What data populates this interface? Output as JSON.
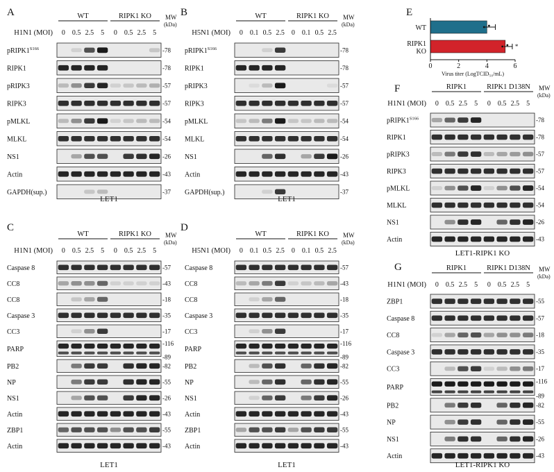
{
  "panels": [
    {
      "id": "A",
      "condition": "H1N1 (MOI)",
      "lanes": [
        "0",
        "0.5",
        "2.5",
        "5",
        "0",
        "0.5",
        "2.5",
        "5"
      ],
      "groups": [
        "WT",
        "RIPK1 KO"
      ],
      "mw_header": [
        "MW",
        "(kDa)"
      ],
      "caption": "LET1",
      "rows": [
        {
          "label": "pRIPK1",
          "sup": "S166",
          "mw": [
            "78"
          ],
          "i": [
            0,
            0.1,
            0.7,
            0.95,
            0,
            0,
            0,
            0.15
          ]
        },
        {
          "label": "RIPK1",
          "mw": [
            "78"
          ],
          "i": [
            0.9,
            0.9,
            0.9,
            0.9,
            0,
            0,
            0,
            0
          ]
        },
        {
          "label": "pRIPK3",
          "mw": [
            "57"
          ],
          "i": [
            0.2,
            0.4,
            0.8,
            0.9,
            0.1,
            0.15,
            0.2,
            0.25
          ]
        },
        {
          "label": "RIPK3",
          "mw": [
            "57"
          ],
          "i": [
            0.85,
            0.85,
            0.85,
            0.85,
            0.85,
            0.85,
            0.85,
            0.85
          ]
        },
        {
          "label": "pMLKL",
          "mw": [
            "54"
          ],
          "i": [
            0.2,
            0.4,
            0.8,
            0.95,
            0.1,
            0.15,
            0.2,
            0.2
          ]
        },
        {
          "label": "MLKL",
          "mw": [
            "54"
          ],
          "i": [
            0.85,
            0.85,
            0.85,
            0.85,
            0.85,
            0.85,
            0.85,
            0.85
          ]
        },
        {
          "label": "NS1",
          "mw": [
            "26"
          ],
          "i": [
            0,
            0.3,
            0.7,
            0.7,
            0,
            0.8,
            0.85,
            0.9
          ]
        },
        {
          "label": "Actin",
          "mw": [
            "43"
          ],
          "i": [
            0.9,
            0.9,
            0.9,
            0.9,
            0.9,
            0.9,
            0.9,
            0.9
          ]
        },
        {
          "label": "GAPDH(sup.)",
          "mw": [
            "37"
          ],
          "i": [
            0,
            0,
            0.15,
            0.2,
            0,
            0,
            0,
            0
          ]
        }
      ]
    },
    {
      "id": "B",
      "condition": "H5N1 (MOI)",
      "lanes": [
        "0",
        "0.1",
        "0.5",
        "2.5",
        "0",
        "0.1",
        "0.5",
        "2.5"
      ],
      "groups": [
        "WT",
        "RIPK1 KO"
      ],
      "mw_header": [
        "MW",
        "(kDa)"
      ],
      "caption": "LET1",
      "rows": [
        {
          "label": "pRIPK1",
          "sup": "S166",
          "mw": [
            "78"
          ],
          "i": [
            0,
            0,
            0.1,
            0.8,
            0,
            0,
            0,
            0
          ]
        },
        {
          "label": "RIPK1",
          "mw": [
            "78"
          ],
          "i": [
            0.9,
            0.9,
            0.9,
            0.9,
            0,
            0,
            0,
            0
          ]
        },
        {
          "label": "pRIPK3",
          "mw": [
            "57"
          ],
          "i": [
            0,
            0.05,
            0.2,
            0.95,
            0,
            0,
            0,
            0.05
          ]
        },
        {
          "label": "RIPK3",
          "mw": [
            "57"
          ],
          "i": [
            0.85,
            0.85,
            0.85,
            0.85,
            0.85,
            0.85,
            0.85,
            0.85
          ]
        },
        {
          "label": "pMLKL",
          "mw": [
            "54"
          ],
          "i": [
            0.15,
            0.2,
            0.5,
            0.95,
            0.15,
            0.15,
            0.2,
            0.2
          ]
        },
        {
          "label": "MLKL",
          "mw": [
            "54"
          ],
          "i": [
            0.85,
            0.85,
            0.85,
            0.85,
            0.85,
            0.85,
            0.85,
            0.85
          ]
        },
        {
          "label": "NS1",
          "mw": [
            "26"
          ],
          "i": [
            0,
            0,
            0.6,
            0.85,
            0,
            0.3,
            0.8,
            0.95
          ]
        },
        {
          "label": "Actin",
          "mw": [
            "43"
          ],
          "i": [
            0.9,
            0.9,
            0.9,
            0.9,
            0.9,
            0.9,
            0.9,
            0.9
          ]
        },
        {
          "label": "GAPDH(sup.)",
          "mw": [
            "37"
          ],
          "i": [
            0,
            0,
            0.1,
            0.8,
            0,
            0,
            0,
            0
          ]
        }
      ]
    },
    {
      "id": "C",
      "condition": "H1N1 (MOI)",
      "lanes": [
        "0",
        "0.5",
        "2.5",
        "5",
        "0",
        "0.5",
        "2.5",
        "5"
      ],
      "groups": [
        "WT",
        "RIPK1 KO"
      ],
      "mw_header": [
        "MW",
        "(kDa)"
      ],
      "caption": "LET1",
      "rows": [
        {
          "label": "Caspase 8",
          "mw": [
            "57"
          ],
          "i": [
            0.85,
            0.85,
            0.85,
            0.85,
            0.85,
            0.85,
            0.85,
            0.85
          ]
        },
        {
          "label": "CC8",
          "mw": [
            "43"
          ],
          "i": [
            0.3,
            0.4,
            0.4,
            0.6,
            0.1,
            0.1,
            0.1,
            0.1
          ]
        },
        {
          "label": "CC8",
          "mw": [
            "18"
          ],
          "i": [
            0,
            0.15,
            0.3,
            0.6,
            0,
            0,
            0,
            0
          ]
        },
        {
          "label": "Caspase 3",
          "mw": [
            "35"
          ],
          "i": [
            0.85,
            0.85,
            0.85,
            0.85,
            0.85,
            0.85,
            0.85,
            0.85
          ]
        },
        {
          "label": "CC3",
          "mw": [
            "17"
          ],
          "i": [
            0,
            0.1,
            0.4,
            0.8,
            0,
            0,
            0,
            0
          ]
        },
        {
          "label": "PARP",
          "mw": [
            "116",
            "89"
          ],
          "tall": true,
          "i": [
            0.9,
            0.9,
            0.9,
            0.9,
            0.9,
            0.9,
            0.9,
            0.9
          ]
        },
        {
          "label": "PB2",
          "mw": [
            "82"
          ],
          "i": [
            0,
            0.5,
            0.8,
            0.8,
            0,
            0.85,
            0.9,
            0.9
          ]
        },
        {
          "label": "NP",
          "mw": [
            "55"
          ],
          "i": [
            0,
            0.5,
            0.8,
            0.8,
            0,
            0.85,
            0.9,
            0.9
          ]
        },
        {
          "label": "NS1",
          "mw": [
            "26"
          ],
          "i": [
            0,
            0.3,
            0.7,
            0.7,
            0,
            0.8,
            0.9,
            0.9
          ]
        },
        {
          "label": "Actin",
          "mw": [
            "43"
          ],
          "i": [
            0.9,
            0.9,
            0.9,
            0.9,
            0.9,
            0.9,
            0.9,
            0.9
          ]
        },
        {
          "label": "ZBP1",
          "mw": [
            "55"
          ],
          "i": [
            0.6,
            0.7,
            0.7,
            0.7,
            0.4,
            0.7,
            0.7,
            0.8
          ]
        },
        {
          "label": "Actin",
          "mw": [
            "43"
          ],
          "i": [
            0.9,
            0.9,
            0.9,
            0.9,
            0.9,
            0.9,
            0.9,
            0.9
          ]
        }
      ]
    },
    {
      "id": "D",
      "condition": "H5N1 (MOI)",
      "lanes": [
        "0",
        "0.1",
        "0.5",
        "2.5",
        "0",
        "0.1",
        "0.5",
        "2.5"
      ],
      "groups": [
        "WT",
        "RIPK1 KO"
      ],
      "mw_header": [
        "MW",
        "(kDa)"
      ],
      "caption": "LET1",
      "rows": [
        {
          "label": "Caspase 8",
          "mw": [
            "57"
          ],
          "i": [
            0.85,
            0.85,
            0.85,
            0.85,
            0.85,
            0.85,
            0.85,
            0.85
          ]
        },
        {
          "label": "CC8",
          "mw": [
            "43"
          ],
          "i": [
            0.2,
            0.3,
            0.5,
            0.8,
            0.1,
            0.15,
            0.2,
            0.3
          ]
        },
        {
          "label": "CC8",
          "mw": [
            "18"
          ],
          "i": [
            0,
            0.1,
            0.3,
            0.6,
            0,
            0,
            0,
            0
          ]
        },
        {
          "label": "Caspase 3",
          "mw": [
            "35"
          ],
          "i": [
            0.85,
            0.85,
            0.85,
            0.85,
            0.85,
            0.85,
            0.85,
            0.85
          ]
        },
        {
          "label": "CC3",
          "mw": [
            "17"
          ],
          "i": [
            0,
            0.1,
            0.4,
            0.8,
            0,
            0,
            0,
            0
          ]
        },
        {
          "label": "PARP",
          "mw": [
            "116",
            "89"
          ],
          "tall": true,
          "i": [
            0.9,
            0.9,
            0.9,
            0.9,
            0.9,
            0.9,
            0.9,
            0.9
          ]
        },
        {
          "label": "PB2",
          "mw": [
            "82"
          ],
          "i": [
            0,
            0.2,
            0.7,
            0.85,
            0,
            0.6,
            0.85,
            0.9
          ]
        },
        {
          "label": "NP",
          "mw": [
            "55"
          ],
          "i": [
            0,
            0.2,
            0.6,
            0.85,
            0,
            0.6,
            0.85,
            0.9
          ]
        },
        {
          "label": "NS1",
          "mw": [
            "26"
          ],
          "i": [
            0,
            0.1,
            0.6,
            0.8,
            0,
            0.5,
            0.8,
            0.9
          ]
        },
        {
          "label": "Actin",
          "mw": [
            "43"
          ],
          "i": [
            0.9,
            0.9,
            0.9,
            0.9,
            0.9,
            0.9,
            0.9,
            0.9
          ]
        },
        {
          "label": "ZBP1",
          "mw": [
            "55"
          ],
          "i": [
            0.3,
            0.7,
            0.7,
            0.8,
            0.3,
            0.7,
            0.8,
            0.8
          ]
        },
        {
          "label": "Actin",
          "mw": [
            "43"
          ],
          "i": [
            0.9,
            0.9,
            0.9,
            0.9,
            0.9,
            0.9,
            0.9,
            0.9
          ]
        }
      ]
    },
    {
      "id": "F",
      "condition": "H1N1 (MOI)",
      "lanes": [
        "0",
        "0.5",
        "2.5",
        "5",
        "0",
        "0.5",
        "2.5",
        "5"
      ],
      "groups": [
        "RIPK1",
        "RIPK1 D138N"
      ],
      "mw_header": [
        "MW",
        "(kDa)"
      ],
      "caption": "LET1-RIPK1 KO",
      "rows": [
        {
          "label": "pRIPK1",
          "sup": "S166",
          "mw": [
            "78"
          ],
          "i": [
            0.3,
            0.6,
            0.8,
            0.9,
            0,
            0,
            0,
            0
          ]
        },
        {
          "label": "RIPK1",
          "mw": [
            "78"
          ],
          "i": [
            0.85,
            0.85,
            0.85,
            0.85,
            0.85,
            0.85,
            0.85,
            0.85
          ]
        },
        {
          "label": "pRIPK3",
          "mw": [
            "57"
          ],
          "i": [
            0.2,
            0.5,
            0.8,
            0.85,
            0.2,
            0.3,
            0.35,
            0.4
          ]
        },
        {
          "label": "RIPK3",
          "mw": [
            "57"
          ],
          "i": [
            0.85,
            0.85,
            0.85,
            0.85,
            0.85,
            0.85,
            0.85,
            0.85
          ]
        },
        {
          "label": "pMLKL",
          "mw": [
            "54"
          ],
          "i": [
            0.1,
            0.4,
            0.7,
            0.9,
            0.1,
            0.4,
            0.7,
            0.9
          ]
        },
        {
          "label": "MLKL",
          "mw": [
            "54"
          ],
          "i": [
            0.85,
            0.85,
            0.85,
            0.85,
            0.85,
            0.85,
            0.85,
            0.85
          ]
        },
        {
          "label": "NS1",
          "mw": [
            "26"
          ],
          "i": [
            0,
            0.4,
            0.85,
            0.9,
            0,
            0.6,
            0.85,
            0.9
          ]
        },
        {
          "label": "Actin",
          "mw": [
            "43"
          ],
          "i": [
            0.9,
            0.9,
            0.9,
            0.9,
            0.9,
            0.9,
            0.9,
            0.9
          ]
        }
      ]
    },
    {
      "id": "G",
      "condition": "H1N1 (MOI)",
      "lanes": [
        "0",
        "0.5",
        "2.5",
        "5",
        "0",
        "0.5",
        "2.5",
        "5"
      ],
      "groups": [
        "RIPK1",
        "RIPK1 D138N"
      ],
      "mw_header": [
        "MW",
        "(kDa)"
      ],
      "caption": "LET1-RIPK1 KO",
      "rows": [
        {
          "label": "ZBP1",
          "mw": [
            "55"
          ],
          "i": [
            0.85,
            0.85,
            0.85,
            0.85,
            0.85,
            0.85,
            0.85,
            0.85
          ]
        },
        {
          "label": "Caspase 8",
          "mw": [
            "57"
          ],
          "i": [
            0.85,
            0.85,
            0.85,
            0.85,
            0.85,
            0.85,
            0.85,
            0.85
          ]
        },
        {
          "label": "CC8",
          "mw": [
            "18"
          ],
          "i": [
            0.1,
            0.3,
            0.6,
            0.7,
            0.3,
            0.4,
            0.4,
            0.5
          ]
        },
        {
          "label": "Caspase 3",
          "mw": [
            "35"
          ],
          "i": [
            0.85,
            0.85,
            0.85,
            0.85,
            0.85,
            0.85,
            0.85,
            0.85
          ]
        },
        {
          "label": "CC3",
          "mw": [
            "17"
          ],
          "i": [
            0,
            0.2,
            0.7,
            0.8,
            0.1,
            0.2,
            0.4,
            0.5
          ]
        },
        {
          "label": "PARP",
          "mw": [
            "116",
            "89"
          ],
          "tall": true,
          "i": [
            0.95,
            0.95,
            0.95,
            0.95,
            0.95,
            0.95,
            0.95,
            0.95
          ]
        },
        {
          "label": "PB2",
          "mw": [
            "82"
          ],
          "i": [
            0,
            0.5,
            0.8,
            0.85,
            0,
            0.6,
            0.85,
            0.9
          ]
        },
        {
          "label": "NP",
          "mw": [
            "55"
          ],
          "i": [
            0,
            0.4,
            0.8,
            0.85,
            0,
            0.6,
            0.85,
            0.9
          ]
        },
        {
          "label": "NS1",
          "mw": [
            "26"
          ],
          "i": [
            0,
            0.5,
            0.85,
            0.85,
            0,
            0.6,
            0.85,
            0.9
          ]
        },
        {
          "label": "Actin",
          "mw": [
            "43"
          ],
          "i": [
            0.9,
            0.9,
            0.9,
            0.9,
            0.9,
            0.9,
            0.9,
            0.9
          ]
        }
      ]
    }
  ],
  "panel_e": {
    "id": "E",
    "chart_data": {
      "type": "bar",
      "orientation": "horizontal",
      "categories": [
        "WT",
        "RIPK1 KO"
      ],
      "category_lines": [
        [
          "WT"
        ],
        [
          "RIPK1",
          "KO"
        ]
      ],
      "values": [
        4.0,
        5.3
      ],
      "errors": [
        0.6,
        0.5
      ],
      "significance": [
        "",
        "*"
      ],
      "xlabel": "Virus titer (LogTCID₅₀/mL)",
      "xlim": [
        0,
        6
      ],
      "xticks": [
        "0",
        "2",
        "4",
        "6"
      ],
      "colors": [
        "#1f6f8b",
        "#d2232a"
      ]
    }
  }
}
